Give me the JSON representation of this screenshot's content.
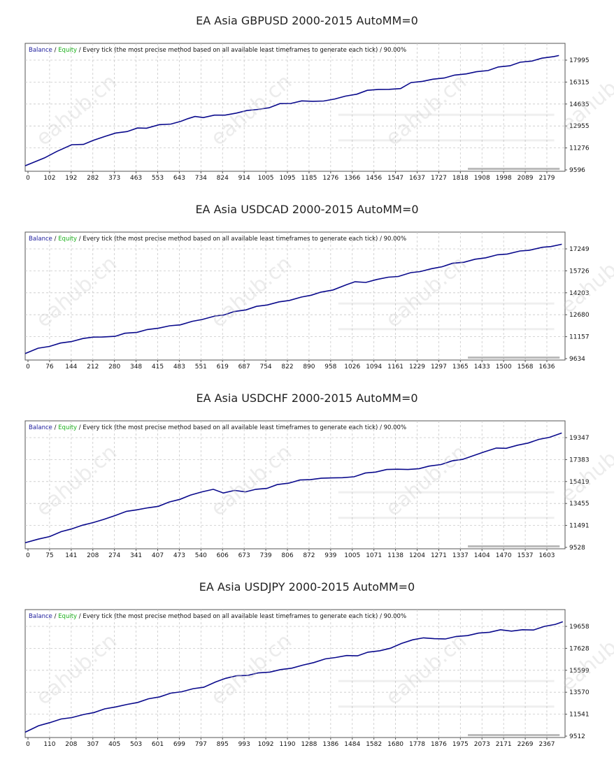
{
  "colors": {
    "balance": "#0a0a8c",
    "balance_label": "#1c1c9c",
    "equity_label": "#1bb01b",
    "grid": "#c8c8c8",
    "frame": "#555555"
  },
  "watermark_text": "eahub.cn",
  "chart_data": [
    {
      "type": "line",
      "title": "EA Asia GBPUSD 2000-2015 AutoMM=0",
      "legend": {
        "balance": "Balance",
        "sep1": " / ",
        "equity": "Equity",
        "sep2": " / Every tick (the most precise method based on all available least timeframes to generate each tick) / 90.00%"
      },
      "x_ticks": [
        "0",
        "102",
        "192",
        "282",
        "373",
        "463",
        "553",
        "643",
        "734",
        "824",
        "914",
        "1005",
        "1095",
        "1185",
        "1276",
        "1366",
        "1456",
        "1547",
        "1637",
        "1727",
        "1818",
        "1908",
        "1998",
        "2089",
        "2179"
      ],
      "y_ticks": [
        "17995",
        "16315",
        "14635",
        "12955",
        "11276",
        "9596"
      ],
      "xlim": [
        0,
        2225
      ],
      "ylim": [
        9596,
        17995
      ],
      "series": [
        {
          "values": [
            [
              0,
              9930
            ],
            [
              80,
              10450
            ],
            [
              130,
              10980
            ],
            [
              192,
              11420
            ],
            [
              240,
              11500
            ],
            [
              282,
              11750
            ],
            [
              330,
              12100
            ],
            [
              373,
              12280
            ],
            [
              420,
              12450
            ],
            [
              463,
              12650
            ],
            [
              500,
              12700
            ],
            [
              553,
              12900
            ],
            [
              600,
              13000
            ],
            [
              643,
              13150
            ],
            [
              670,
              13400
            ],
            [
              700,
              13500
            ],
            [
              734,
              13480
            ],
            [
              780,
              13600
            ],
            [
              824,
              13660
            ],
            [
              870,
              13750
            ],
            [
              914,
              14000
            ],
            [
              960,
              14020
            ],
            [
              1005,
              14200
            ],
            [
              1050,
              14450
            ],
            [
              1095,
              14520
            ],
            [
              1140,
              14650
            ],
            [
              1185,
              14680
            ],
            [
              1230,
              14640
            ],
            [
              1276,
              14850
            ],
            [
              1320,
              15000
            ],
            [
              1366,
              15200
            ],
            [
              1410,
              15430
            ],
            [
              1456,
              15560
            ],
            [
              1500,
              15500
            ],
            [
              1547,
              15620
            ],
            [
              1590,
              16000
            ],
            [
              1637,
              16150
            ],
            [
              1680,
              16250
            ],
            [
              1727,
              16400
            ],
            [
              1770,
              16550
            ],
            [
              1818,
              16700
            ],
            [
              1860,
              16800
            ],
            [
              1908,
              16950
            ],
            [
              1950,
              17150
            ],
            [
              1998,
              17300
            ],
            [
              2040,
              17500
            ],
            [
              2089,
              17650
            ],
            [
              2130,
              17800
            ],
            [
              2179,
              17980
            ],
            [
              2200,
              17995
            ]
          ]
        }
      ]
    },
    {
      "type": "line",
      "title": "EA Asia USDCAD 2000-2015 AutoMM=0",
      "legend": {
        "balance": "Balance",
        "sep1": " / ",
        "equity": "Equity",
        "sep2": " / Every tick (the most precise method based on all available least timeframes to generate each tick) / 90.00%"
      },
      "x_ticks": [
        "0",
        "76",
        "144",
        "212",
        "280",
        "348",
        "415",
        "483",
        "551",
        "619",
        "687",
        "754",
        "822",
        "890",
        "958",
        "1026",
        "1094",
        "1161",
        "1229",
        "1297",
        "1365",
        "1433",
        "1500",
        "1568",
        "1636"
      ],
      "y_ticks": [
        "17249",
        "15726",
        "14203",
        "12680",
        "11157",
        "9634"
      ],
      "xlim": [
        0,
        1680
      ],
      "ylim": [
        9634,
        17249
      ],
      "series": [
        {
          "values": [
            [
              0,
              10000
            ],
            [
              40,
              10300
            ],
            [
              76,
              10480
            ],
            [
              110,
              10650
            ],
            [
              144,
              10800
            ],
            [
              180,
              10950
            ],
            [
              212,
              11100
            ],
            [
              240,
              11050
            ],
            [
              280,
              11150
            ],
            [
              310,
              11300
            ],
            [
              348,
              11420
            ],
            [
              380,
              11550
            ],
            [
              415,
              11700
            ],
            [
              450,
              11800
            ],
            [
              483,
              11920
            ],
            [
              520,
              12100
            ],
            [
              551,
              12280
            ],
            [
              590,
              12450
            ],
            [
              619,
              12580
            ],
            [
              650,
              12750
            ],
            [
              687,
              12920
            ],
            [
              720,
              13100
            ],
            [
              754,
              13250
            ],
            [
              790,
              13400
            ],
            [
              822,
              13550
            ],
            [
              860,
              13720
            ],
            [
              890,
              13900
            ],
            [
              920,
              14050
            ],
            [
              958,
              14250
            ],
            [
              1000,
              14550
            ],
            [
              1026,
              14800
            ],
            [
              1060,
              14700
            ],
            [
              1094,
              14950
            ],
            [
              1130,
              15050
            ],
            [
              1161,
              15150
            ],
            [
              1200,
              15350
            ],
            [
              1229,
              15480
            ],
            [
              1265,
              15620
            ],
            [
              1297,
              15800
            ],
            [
              1330,
              15980
            ],
            [
              1365,
              16100
            ],
            [
              1400,
              16250
            ],
            [
              1433,
              16400
            ],
            [
              1470,
              16550
            ],
            [
              1500,
              16650
            ],
            [
              1540,
              16800
            ],
            [
              1568,
              16900
            ],
            [
              1610,
              17050
            ],
            [
              1636,
              17150
            ],
            [
              1670,
              17249
            ]
          ]
        }
      ]
    },
    {
      "type": "line",
      "title": "EA Asia USDCHF 2000-2015 AutoMM=0",
      "legend": {
        "balance": "Balance",
        "sep1": " / ",
        "equity": "Equity",
        "sep2": " / Every tick (the most precise method based on all available least timeframes to generate each tick) / 90.00%"
      },
      "x_ticks": [
        "0",
        "75",
        "141",
        "208",
        "274",
        "341",
        "407",
        "473",
        "540",
        "606",
        "673",
        "739",
        "806",
        "872",
        "939",
        "1005",
        "1071",
        "1138",
        "1204",
        "1271",
        "1337",
        "1404",
        "1470",
        "1537",
        "1603"
      ],
      "y_ticks": [
        "19347",
        "17383",
        "15419",
        "13455",
        "11491",
        "9528"
      ],
      "xlim": [
        0,
        1650
      ],
      "ylim": [
        9528,
        19347
      ],
      "series": [
        {
          "values": [
            [
              0,
              9960
            ],
            [
              40,
              10200
            ],
            [
              75,
              10500
            ],
            [
              110,
              10850
            ],
            [
              141,
              11150
            ],
            [
              175,
              11400
            ],
            [
              208,
              11700
            ],
            [
              240,
              11900
            ],
            [
              274,
              12300
            ],
            [
              310,
              12600
            ],
            [
              341,
              12800
            ],
            [
              375,
              12900
            ],
            [
              407,
              13100
            ],
            [
              440,
              13400
            ],
            [
              473,
              13700
            ],
            [
              505,
              14000
            ],
            [
              540,
              14350
            ],
            [
              575,
              14500
            ],
            [
              606,
              14250
            ],
            [
              640,
              14400
            ],
            [
              673,
              14350
            ],
            [
              705,
              14500
            ],
            [
              739,
              14650
            ],
            [
              770,
              14900
            ],
            [
              806,
              15100
            ],
            [
              840,
              15300
            ],
            [
              872,
              15400
            ],
            [
              905,
              15450
            ],
            [
              939,
              15550
            ],
            [
              970,
              15500
            ],
            [
              1005,
              15650
            ],
            [
              1040,
              15900
            ],
            [
              1071,
              16050
            ],
            [
              1105,
              16200
            ],
            [
              1138,
              16300
            ],
            [
              1170,
              16200
            ],
            [
              1204,
              16350
            ],
            [
              1235,
              16500
            ],
            [
              1271,
              16700
            ],
            [
              1305,
              16950
            ],
            [
              1337,
              17150
            ],
            [
              1370,
              17400
            ],
            [
              1404,
              17800
            ],
            [
              1440,
              18050
            ],
            [
              1470,
              18100
            ],
            [
              1505,
              18300
            ],
            [
              1537,
              18550
            ],
            [
              1570,
              18800
            ],
            [
              1603,
              19050
            ],
            [
              1640,
              19347
            ]
          ]
        }
      ]
    },
    {
      "type": "line",
      "title": "EA Asia USDJPY 2000-2015 AutoMM=0",
      "legend": {
        "balance": "Balance",
        "sep1": " / ",
        "equity": "Equity",
        "sep2": " / Every tick (the most precise method based on all available least timeframes to generate each tick) / 90.00%"
      },
      "x_ticks": [
        "0",
        "110",
        "208",
        "307",
        "405",
        "503",
        "601",
        "699",
        "797",
        "895",
        "993",
        "1092",
        "1190",
        "1288",
        "1386",
        "1484",
        "1582",
        "1680",
        "1778",
        "1876",
        "1975",
        "2073",
        "2171",
        "2269",
        "2367"
      ],
      "y_ticks": [
        "19658",
        "17628",
        "15599",
        "13570",
        "11541",
        "9512"
      ],
      "xlim": [
        0,
        2410
      ],
      "ylim": [
        9512,
        19658
      ],
      "series": [
        {
          "values": [
            [
              0,
              9900
            ],
            [
              60,
              10400
            ],
            [
              110,
              10750
            ],
            [
              160,
              11000
            ],
            [
              208,
              11200
            ],
            [
              260,
              11400
            ],
            [
              307,
              11650
            ],
            [
              355,
              11900
            ],
            [
              405,
              12150
            ],
            [
              455,
              12300
            ],
            [
              503,
              12550
            ],
            [
              550,
              12800
            ],
            [
              601,
              13050
            ],
            [
              650,
              13300
            ],
            [
              699,
              13500
            ],
            [
              750,
              13700
            ],
            [
              797,
              13900
            ],
            [
              850,
              14300
            ],
            [
              895,
              14700
            ],
            [
              945,
              14850
            ],
            [
              993,
              14950
            ],
            [
              1040,
              15100
            ],
            [
              1092,
              15250
            ],
            [
              1140,
              15400
            ],
            [
              1190,
              15600
            ],
            [
              1240,
              15800
            ],
            [
              1288,
              16100
            ],
            [
              1340,
              16350
            ],
            [
              1386,
              16550
            ],
            [
              1435,
              16650
            ],
            [
              1484,
              16700
            ],
            [
              1530,
              16950
            ],
            [
              1582,
              17150
            ],
            [
              1630,
              17300
            ],
            [
              1680,
              17800
            ],
            [
              1730,
              18050
            ],
            [
              1778,
              18300
            ],
            [
              1826,
              18150
            ],
            [
              1876,
              18200
            ],
            [
              1925,
              18350
            ],
            [
              1975,
              18500
            ],
            [
              2024,
              18650
            ],
            [
              2073,
              18800
            ],
            [
              2122,
              18950
            ],
            [
              2171,
              18900
            ],
            [
              2220,
              18950
            ],
            [
              2269,
              19000
            ],
            [
              2318,
              19250
            ],
            [
              2367,
              19500
            ],
            [
              2400,
              19658
            ]
          ]
        }
      ]
    }
  ]
}
